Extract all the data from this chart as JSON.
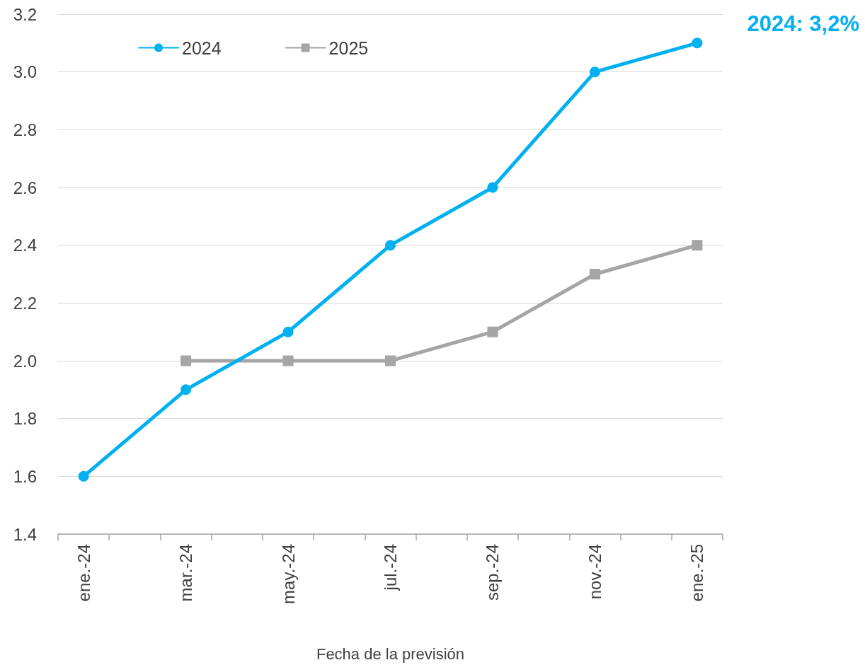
{
  "chart_data": {
    "type": "line",
    "categories": [
      "ene.-24",
      null,
      "mar.-24",
      null,
      "may.-24",
      null,
      "jul.-24",
      null,
      "sep.-24",
      null,
      "nov.-24",
      null,
      "ene.-25"
    ],
    "series": [
      {
        "name": "2024",
        "color": "#00b0f0",
        "marker": "circle",
        "values": [
          1.6,
          null,
          1.9,
          null,
          2.1,
          null,
          2.4,
          null,
          2.6,
          null,
          3.0,
          null,
          3.1
        ]
      },
      {
        "name": "2025",
        "color": "#a5a5a5",
        "marker": "square",
        "values": [
          null,
          null,
          2.0,
          null,
          2.0,
          null,
          2.0,
          null,
          2.1,
          null,
          2.3,
          null,
          2.4
        ]
      }
    ],
    "xlabel": "Fecha de la previsión",
    "ylim": [
      1.4,
      3.2
    ],
    "yticks": [
      1.4,
      1.6,
      1.8,
      {
        "value": 2,
        "label": "2.0"
      },
      2.2,
      2.4,
      2.6,
      2.8,
      {
        "value": 3,
        "label": "3.0"
      },
      3.2
    ],
    "annotations": [
      "2024: 3,2%"
    ],
    "grid": "y",
    "legend": "top left"
  }
}
